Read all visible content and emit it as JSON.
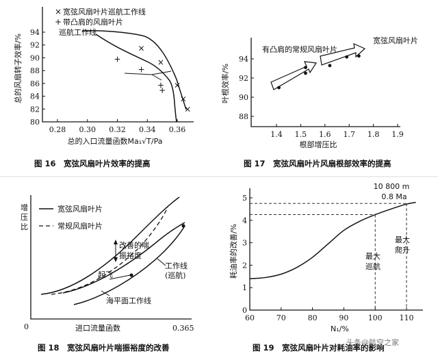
{
  "chart_data": [
    {
      "id": "fig16",
      "type": "scatter",
      "caption": "图 16　宽弦风扇叶片效率的提高",
      "xlabel": "总的入口流量函数Ma₁√T/Pa",
      "ylabel": "总的风扇转子效率/%",
      "xlim": [
        0.27,
        0.37
      ],
      "ylim": [
        80,
        96
      ],
      "x_ticks": [
        0.28,
        0.3,
        0.32,
        0.34,
        0.36
      ],
      "x_tick_labels": [
        "0.28",
        "0.30",
        "0.32",
        "0.34",
        "0.36"
      ],
      "y_ticks": [
        80,
        82,
        84,
        86,
        88,
        90,
        92,
        94
      ],
      "y_tick_labels": [
        "80",
        "82",
        "84",
        "86",
        "88",
        "90",
        "92",
        "94"
      ],
      "legend": [
        {
          "symbol": "×",
          "label": "宽弦风扇叶片巡航工作线"
        },
        {
          "symbol": "+",
          "label": "带凸肩的风扇叶片"
        },
        {
          "symbol": "",
          "label": "巡航工作线"
        }
      ],
      "series": [
        {
          "name": "宽弦风扇叶片巡航工作线",
          "marker": "x",
          "x": [
            0.336,
            0.349,
            0.36,
            0.364,
            0.367
          ],
          "y": [
            91.5,
            89.3,
            85.7,
            83.6,
            82.0
          ]
        },
        {
          "name": "带凸肩的风扇叶片巡航工作线",
          "marker": "+",
          "x": [
            0.32,
            0.336,
            0.349,
            0.35
          ],
          "y": [
            89.8,
            88.2,
            85.7,
            84.9
          ]
        }
      ]
    },
    {
      "id": "fig17",
      "type": "scatter",
      "caption": "图 17　宽弦风扇叶片风扇根部效率的提高",
      "xlabel": "根部增压比",
      "ylabel": "叶根效率/%",
      "xlim": [
        1.35,
        1.9
      ],
      "ylim": [
        86,
        96
      ],
      "x_ticks": [
        1.4,
        1.5,
        1.6,
        1.7,
        1.8,
        1.9
      ],
      "x_tick_labels": [
        "1.4",
        "1.5",
        "1.6",
        "1.7",
        "1.8",
        "1.9"
      ],
      "y_ticks": [
        88,
        90,
        92,
        94
      ],
      "y_tick_labels": [
        "88",
        "90",
        "92",
        "94"
      ],
      "annotations": [
        "有凸肩的常规风扇叶片",
        "宽弦风扇叶片"
      ],
      "series": [
        {
          "name": "有凸肩的常规风扇叶片",
          "x": [
            1.41,
            1.52,
            1.52
          ],
          "y": [
            91.0,
            92.5,
            93.1
          ]
        },
        {
          "name": "宽弦风扇叶片",
          "x": [
            1.62,
            1.69,
            1.74
          ],
          "y": [
            93.3,
            94.2,
            94.3
          ]
        }
      ]
    },
    {
      "id": "fig18",
      "type": "line",
      "caption": "图 18　宽弦风扇叶片喘振裕度的改善",
      "xlabel": "进口流量函数",
      "ylabel": "增压比",
      "x_tick_labels": [
        "0.365"
      ],
      "y_tick_labels": [
        "0"
      ],
      "legend": [
        {
          "style": "solid",
          "label": "宽弦风扇叶片"
        },
        {
          "style": "dashed",
          "label": "常规风扇叶片"
        }
      ],
      "annotations": [
        "改善的喘振裕度",
        "起飞",
        "工作线(巡航)",
        "海平面工作线"
      ]
    },
    {
      "id": "fig19",
      "type": "line",
      "caption": "图 19　宽弦风扇叶片对耗油率的影响",
      "xlabel": "N₁/%",
      "ylabel": "耗油率的改善/%",
      "xlim": [
        60,
        115
      ],
      "ylim": [
        0,
        5
      ],
      "x_ticks": [
        60,
        70,
        80,
        90,
        100,
        110
      ],
      "x_tick_labels": [
        "60",
        "70",
        "80",
        "90",
        "100",
        "110"
      ],
      "y_ticks": [
        0,
        1,
        2,
        3,
        4,
        5
      ],
      "y_tick_labels": [
        "0",
        "1",
        "2",
        "3",
        "4",
        "5"
      ],
      "annotations": [
        "10 800 m",
        "0.8 Ma",
        "最大巡航",
        "最大爬升"
      ],
      "series": [
        {
          "name": "",
          "x": [
            60,
            65,
            70,
            75,
            80,
            85,
            90,
            95,
            100,
            105,
            110,
            113
          ],
          "y": [
            1.4,
            1.45,
            1.6,
            1.9,
            2.35,
            2.95,
            3.55,
            3.95,
            4.25,
            4.5,
            4.72,
            4.8
          ]
        }
      ]
    }
  ],
  "watermark": "头条@航空之家"
}
